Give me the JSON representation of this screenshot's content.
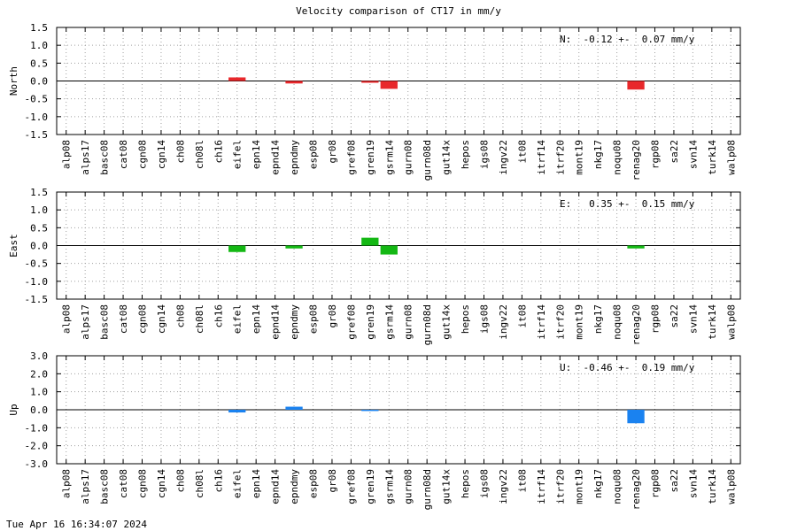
{
  "title": "Velocity comparison of CT17 in mm/y",
  "timestamp": "Tue Apr 16 16:34:07 2024",
  "chart_data": [
    {
      "type": "bar",
      "ylabel": "North",
      "ylim": [
        -1.5,
        1.5
      ],
      "yticks": [
        "1.5",
        "1.0",
        "0.5",
        "0.0",
        "-0.5",
        "-1.0",
        "-1.5"
      ],
      "annotation": "N:  -0.12 +-  0.07 mm/y",
      "color": "#e8282b",
      "grid": true,
      "categories": [
        "alp08",
        "alps17",
        "basc08",
        "cat08",
        "cgn08",
        "cgn14",
        "ch08",
        "ch08l",
        "ch16",
        "eifel",
        "epn14",
        "epnd14",
        "epndmy",
        "esp08",
        "gr08",
        "gref08",
        "gren19",
        "gsrm14",
        "gurn08",
        "gurn08d",
        "gut14x",
        "hepos",
        "igs08",
        "ingv22",
        "it08",
        "itrf14",
        "itrf20",
        "mont19",
        "nkg17",
        "noqu08",
        "renag20",
        "rgp08",
        "sa22",
        "svn14",
        "turk14",
        "walp08"
      ],
      "values": [
        null,
        null,
        null,
        null,
        null,
        null,
        null,
        null,
        null,
        0.1,
        null,
        null,
        -0.07,
        null,
        null,
        null,
        -0.05,
        -0.22,
        null,
        null,
        null,
        null,
        null,
        null,
        null,
        null,
        null,
        null,
        null,
        null,
        -0.24,
        null,
        null,
        null,
        null,
        null
      ]
    },
    {
      "type": "bar",
      "ylabel": "East",
      "ylim": [
        -1.5,
        1.5
      ],
      "yticks": [
        "1.5",
        "1.0",
        "0.5",
        "0.0",
        "-0.5",
        "-1.0",
        "-1.5"
      ],
      "annotation": "E:   0.35 +-  0.15 mm/y",
      "color": "#14b814",
      "grid": true,
      "categories": [
        "alp08",
        "alps17",
        "basc08",
        "cat08",
        "cgn08",
        "cgn14",
        "ch08",
        "ch08l",
        "ch16",
        "eifel",
        "epn14",
        "epnd14",
        "epndmy",
        "esp08",
        "gr08",
        "gref08",
        "gren19",
        "gsrm14",
        "gurn08",
        "gurn08d",
        "gut14x",
        "hepos",
        "igs08",
        "ingv22",
        "it08",
        "itrf14",
        "itrf20",
        "mont19",
        "nkg17",
        "noqu08",
        "renag20",
        "rgp08",
        "sa22",
        "svn14",
        "turk14",
        "walp08"
      ],
      "values": [
        null,
        null,
        null,
        null,
        null,
        null,
        null,
        null,
        null,
        -0.18,
        null,
        null,
        -0.08,
        null,
        null,
        null,
        0.22,
        -0.25,
        null,
        null,
        null,
        null,
        null,
        null,
        null,
        null,
        null,
        null,
        null,
        null,
        -0.08,
        null,
        null,
        null,
        null,
        null
      ]
    },
    {
      "type": "bar",
      "ylabel": "Up",
      "ylim": [
        -3.0,
        3.0
      ],
      "yticks": [
        "3.0",
        "2.0",
        "1.0",
        "0.0",
        "-1.0",
        "-2.0",
        "-3.0"
      ],
      "annotation": "U:  -0.46 +-  0.19 mm/y",
      "color": "#1a82f0",
      "grid": true,
      "categories": [
        "alp08",
        "alps17",
        "basc08",
        "cat08",
        "cgn08",
        "cgn14",
        "ch08",
        "ch08l",
        "ch16",
        "eifel",
        "epn14",
        "epnd14",
        "epndmy",
        "esp08",
        "gr08",
        "gref08",
        "gren19",
        "gsrm14",
        "gurn08",
        "gurn08d",
        "gut14x",
        "hepos",
        "igs08",
        "ingv22",
        "it08",
        "itrf14",
        "itrf20",
        "mont19",
        "nkg17",
        "noqu08",
        "renag20",
        "rgp08",
        "sa22",
        "svn14",
        "turk14",
        "walp08"
      ],
      "values": [
        null,
        null,
        null,
        null,
        null,
        null,
        null,
        null,
        null,
        -0.15,
        null,
        null,
        0.17,
        null,
        null,
        null,
        -0.07,
        null,
        null,
        null,
        null,
        null,
        null,
        null,
        null,
        null,
        null,
        null,
        null,
        null,
        -0.75,
        null,
        null,
        null,
        null,
        null
      ]
    }
  ]
}
